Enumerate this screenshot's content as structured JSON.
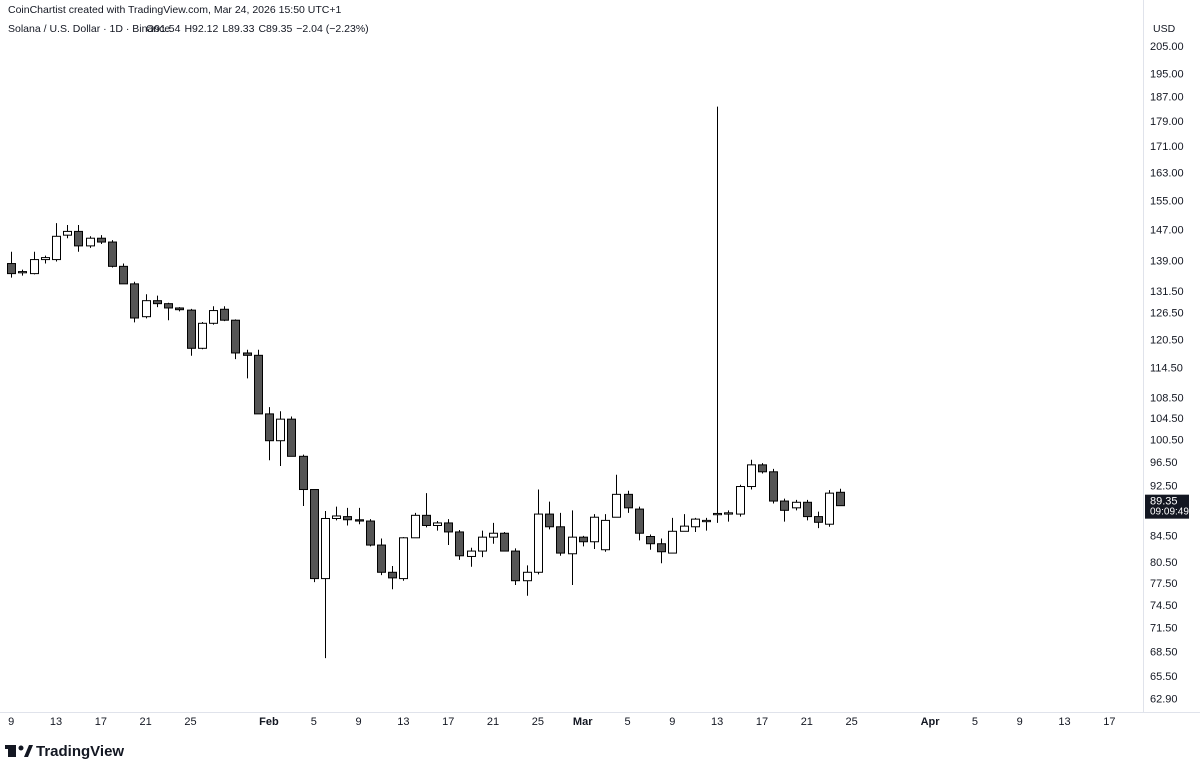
{
  "credit": "CoinChartist created with TradingView.com, Mar 24, 2026 15:50 UTC+1",
  "logo": "TradingView",
  "chart_data": {
    "type": "candlestick",
    "title": "Solana / U.S. Dollar · 1D · Binance",
    "ohlc_header": [
      "O91.54",
      "H92.12",
      "L89.33",
      "C89.35",
      "−2.04 (−2.23%)"
    ],
    "y_axis_label": "USD",
    "log_scale": true,
    "up_color": "#ffffff",
    "down_color": "#555555",
    "outline_color": "#000000",
    "current_price": 89.35,
    "countdown": "09:09:49",
    "x": [
      "2026-01-09",
      "2026-01-10",
      "2026-01-11",
      "2026-01-12",
      "2026-01-13",
      "2026-01-14",
      "2026-01-15",
      "2026-01-16",
      "2026-01-17",
      "2026-01-18",
      "2026-01-19",
      "2026-01-20",
      "2026-01-21",
      "2026-01-22",
      "2026-01-23",
      "2026-01-24",
      "2026-01-25",
      "2026-01-26",
      "2026-01-27",
      "2026-01-28",
      "2026-01-29",
      "2026-01-30",
      "2026-01-31",
      "2026-02-01",
      "2026-02-02",
      "2026-02-03",
      "2026-02-04",
      "2026-02-05",
      "2026-02-06",
      "2026-02-07",
      "2026-02-08",
      "2026-02-09",
      "2026-02-10",
      "2026-02-11",
      "2026-02-12",
      "2026-02-13",
      "2026-02-14",
      "2026-02-15",
      "2026-02-16",
      "2026-02-17",
      "2026-02-18",
      "2026-02-19",
      "2026-02-20",
      "2026-02-21",
      "2026-02-22",
      "2026-02-23",
      "2026-02-24",
      "2026-02-25",
      "2026-02-26",
      "2026-02-27",
      "2026-02-28",
      "2026-03-01",
      "2026-03-02",
      "2026-03-03",
      "2026-03-04",
      "2026-03-05",
      "2026-03-06",
      "2026-03-07",
      "2026-03-08",
      "2026-03-09",
      "2026-03-10",
      "2026-03-11",
      "2026-03-12",
      "2026-03-13",
      "2026-03-14",
      "2026-03-15",
      "2026-03-16",
      "2026-03-17",
      "2026-03-18",
      "2026-03-19",
      "2026-03-20",
      "2026-03-21",
      "2026-03-22",
      "2026-03-23",
      "2026-03-24"
    ],
    "open": [
      138.5,
      136.2,
      136,
      139.5,
      139.5,
      145.8,
      146.8,
      143,
      145,
      144,
      137.8,
      133.5,
      125.8,
      129.5,
      128.8,
      127.8,
      127.3,
      118.8,
      124.3,
      127.5,
      125,
      117.8,
      117.3,
      105.5,
      100.5,
      104.5,
      97.7,
      92,
      78.3,
      87.3,
      87.6,
      87.1,
      86.9,
      83.2,
      79.2,
      78.3,
      84.3,
      87.8,
      86.2,
      86.6,
      85.2,
      81.5,
      82.3,
      84.4,
      85,
      82.3,
      78,
      79.2,
      88,
      86,
      81.9,
      84.4,
      83.7,
      82.5,
      87.5,
      91.2,
      88.8,
      84.5,
      83.4,
      82,
      85.3,
      86,
      86.8,
      87.9,
      88,
      88,
      92.5,
      96.2,
      95,
      90.1,
      89,
      89.9,
      87.6,
      86.4,
      91.54
    ],
    "high": [
      141.5,
      137,
      141.5,
      140.5,
      149,
      148.5,
      148.5,
      145.5,
      145.8,
      144.5,
      138.5,
      134,
      131,
      130.7,
      129,
      128,
      127.6,
      124.6,
      128.2,
      128.2,
      125.2,
      118.5,
      118.5,
      106.8,
      106,
      105,
      98,
      92,
      88.5,
      89.2,
      89,
      89,
      87.2,
      84.2,
      80.1,
      84.4,
      88.2,
      91.4,
      86.9,
      87.2,
      85.5,
      82.8,
      85.4,
      86.6,
      85.2,
      82.7,
      80.2,
      92,
      90,
      88.2,
      88.6,
      84.6,
      88,
      88,
      94.5,
      91.8,
      89.2,
      84.8,
      84.2,
      87.4,
      88,
      87.4,
      87.4,
      184,
      88.6,
      92.8,
      97.1,
      96.5,
      95.5,
      90.5,
      90.3,
      90.3,
      88.4,
      91.9,
      92.12
    ],
    "low": [
      135,
      135.5,
      135.8,
      138.5,
      139,
      145,
      141.5,
      142.5,
      143.5,
      137.5,
      133.5,
      124.5,
      125.4,
      128,
      125,
      127,
      117.2,
      118.6,
      124,
      124.8,
      116.5,
      112.5,
      105.5,
      97,
      96,
      97.7,
      89.3,
      77.8,
      67.8,
      87,
      86.2,
      86.4,
      83,
      78.8,
      76.8,
      78,
      84.3,
      85.9,
      85.4,
      83.2,
      81,
      80,
      81.4,
      83.4,
      82.3,
      77.4,
      75.9,
      78.9,
      85.6,
      81.6,
      77.4,
      83,
      82.6,
      82.2,
      87.5,
      88.2,
      83.9,
      82.5,
      80.5,
      82,
      85.3,
      85.2,
      85.4,
      86.6,
      86.8,
      87.6,
      92,
      94.7,
      89.7,
      86.8,
      88.6,
      87,
      85.8,
      86,
      89.33
    ],
    "close": [
      136,
      136.5,
      139.5,
      140,
      145.5,
      146.8,
      143,
      145,
      144,
      137.8,
      133.5,
      125.5,
      129.5,
      128.8,
      127.8,
      127.4,
      118.8,
      124.3,
      127.2,
      125,
      117.8,
      117.3,
      105.5,
      100.5,
      104.5,
      97.7,
      92,
      78.3,
      87.3,
      87.7,
      87.1,
      86.9,
      83.2,
      79.2,
      78.4,
      84.3,
      87.8,
      86.2,
      86.6,
      85.2,
      81.6,
      82.3,
      84.4,
      85,
      82.3,
      78,
      79.2,
      88,
      86,
      82,
      84.4,
      83.7,
      87.5,
      87,
      91.2,
      89,
      85,
      83.4,
      82.2,
      85.3,
      86.1,
      87.2,
      87,
      88.1,
      88.2,
      92.5,
      96.2,
      95,
      90.1,
      88.6,
      89.9,
      87.6,
      86.7,
      91.4,
      89.35
    ],
    "xlim": [
      "2026-01-08",
      "2026-04-20"
    ],
    "xticks": [
      {
        "value": "2026-01-09",
        "label": "9"
      },
      {
        "value": "2026-01-13",
        "label": "13"
      },
      {
        "value": "2026-01-17",
        "label": "17"
      },
      {
        "value": "2026-01-21",
        "label": "21"
      },
      {
        "value": "2026-01-25",
        "label": "25"
      },
      {
        "value": "2026-02-01",
        "label": "Feb"
      },
      {
        "value": "2026-02-05",
        "label": "5"
      },
      {
        "value": "2026-02-09",
        "label": "9"
      },
      {
        "value": "2026-02-13",
        "label": "13"
      },
      {
        "value": "2026-02-17",
        "label": "17"
      },
      {
        "value": "2026-02-21",
        "label": "21"
      },
      {
        "value": "2026-02-25",
        "label": "25"
      },
      {
        "value": "2026-03-01",
        "label": "Mar"
      },
      {
        "value": "2026-03-05",
        "label": "5"
      },
      {
        "value": "2026-03-09",
        "label": "9"
      },
      {
        "value": "2026-03-13",
        "label": "13"
      },
      {
        "value": "2026-03-17",
        "label": "17"
      },
      {
        "value": "2026-03-21",
        "label": "21"
      },
      {
        "value": "2026-03-25",
        "label": "25"
      },
      {
        "value": "2026-04-01",
        "label": "Apr"
      },
      {
        "value": "2026-04-05",
        "label": "5"
      },
      {
        "value": "2026-04-09",
        "label": "9"
      },
      {
        "value": "2026-04-13",
        "label": "13"
      },
      {
        "value": "2026-04-17",
        "label": "17"
      }
    ],
    "ylim": [
      61.5,
      217.2
    ],
    "yticks": [
      {
        "value": 205,
        "label": "205.00"
      },
      {
        "value": 195,
        "label": "195.00"
      },
      {
        "value": 187,
        "label": "187.00"
      },
      {
        "value": 179,
        "label": "179.00"
      },
      {
        "value": 171,
        "label": "171.00"
      },
      {
        "value": 163,
        "label": "163.00"
      },
      {
        "value": 155,
        "label": "155.00"
      },
      {
        "value": 147,
        "label": "147.00"
      },
      {
        "value": 139,
        "label": "139.00"
      },
      {
        "value": 131.5,
        "label": "131.50"
      },
      {
        "value": 126.5,
        "label": "126.50"
      },
      {
        "value": 120.5,
        "label": "120.50"
      },
      {
        "value": 114.5,
        "label": "114.50"
      },
      {
        "value": 108.5,
        "label": "108.50"
      },
      {
        "value": 104.5,
        "label": "104.50"
      },
      {
        "value": 100.5,
        "label": "100.50"
      },
      {
        "value": 96.5,
        "label": "96.50"
      },
      {
        "value": 92.5,
        "label": "92.50"
      },
      {
        "value": 84.5,
        "label": "84.50"
      },
      {
        "value": 80.5,
        "label": "80.50"
      },
      {
        "value": 77.5,
        "label": "77.50"
      },
      {
        "value": 74.5,
        "label": "74.50"
      },
      {
        "value": 71.5,
        "label": "71.50"
      },
      {
        "value": 68.5,
        "label": "68.50"
      },
      {
        "value": 65.5,
        "label": "65.50"
      },
      {
        "value": 62.9,
        "label": "62.90"
      }
    ]
  }
}
